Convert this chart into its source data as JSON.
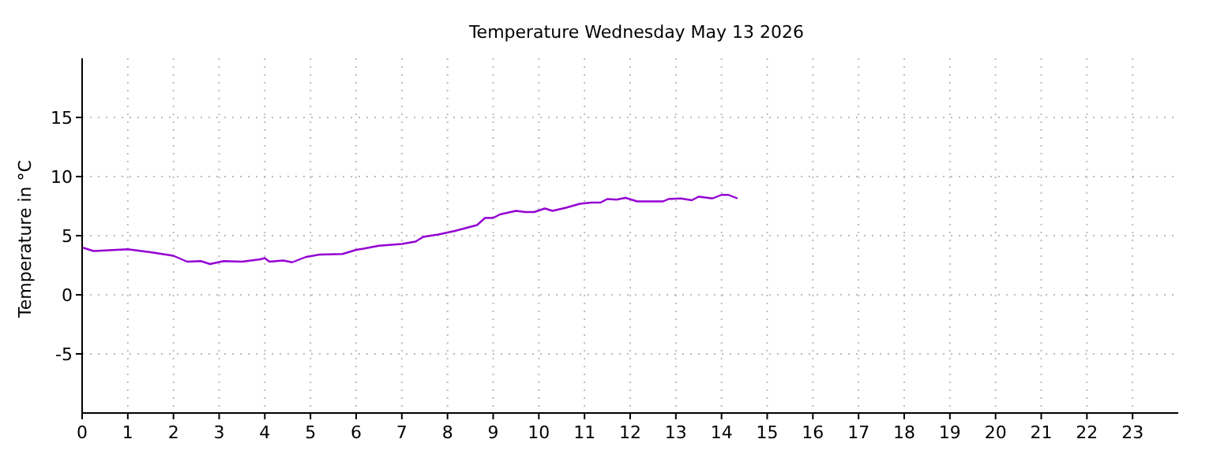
{
  "chart_data": {
    "type": "line",
    "title": "Temperature Wednesday May 13 2026",
    "ylabel": "Temperature in °C",
    "x": [
      0,
      0.25,
      0.5,
      1.0,
      1.5,
      2.0,
      2.3,
      2.6,
      2.8,
      3.1,
      3.5,
      3.9,
      4.0,
      4.1,
      4.4,
      4.6,
      4.9,
      5.2,
      5.7,
      6.0,
      6.16,
      6.5,
      7.0,
      7.3,
      7.47,
      7.8,
      8.16,
      8.65,
      8.82,
      9.0,
      9.15,
      9.5,
      9.7,
      9.9,
      10.13,
      10.3,
      10.58,
      10.9,
      11.15,
      11.35,
      11.5,
      11.7,
      11.9,
      12.15,
      12.45,
      12.72,
      12.84,
      13.1,
      13.35,
      13.5,
      13.8,
      14.0,
      14.15,
      14.35
    ],
    "series": [
      {
        "color": "#9400d3",
        "values": [
          4.0,
          3.7,
          3.75,
          3.85,
          3.6,
          3.3,
          2.8,
          2.85,
          2.6,
          2.85,
          2.8,
          3.0,
          3.1,
          2.8,
          2.9,
          2.75,
          3.2,
          3.4,
          3.45,
          3.8,
          3.9,
          4.15,
          4.3,
          4.5,
          4.9,
          5.1,
          5.4,
          5.9,
          6.5,
          6.5,
          6.8,
          7.1,
          7.0,
          7.0,
          7.3,
          7.1,
          7.35,
          7.7,
          7.8,
          7.8,
          8.1,
          8.05,
          8.2,
          7.9,
          7.9,
          7.9,
          8.1,
          8.15,
          8.0,
          8.3,
          8.15,
          8.45,
          8.45,
          8.15
        ]
      }
    ],
    "xlim": [
      0,
      24
    ],
    "xticks": [
      0,
      1,
      2,
      3,
      4,
      5,
      6,
      7,
      8,
      9,
      10,
      11,
      12,
      13,
      14,
      15,
      16,
      17,
      18,
      19,
      20,
      21,
      22,
      23
    ],
    "ylim": [
      -10,
      20
    ],
    "yticks": [
      -5,
      0,
      5,
      10,
      15
    ],
    "grid": true,
    "marker": "none",
    "line_style": "solid"
  }
}
